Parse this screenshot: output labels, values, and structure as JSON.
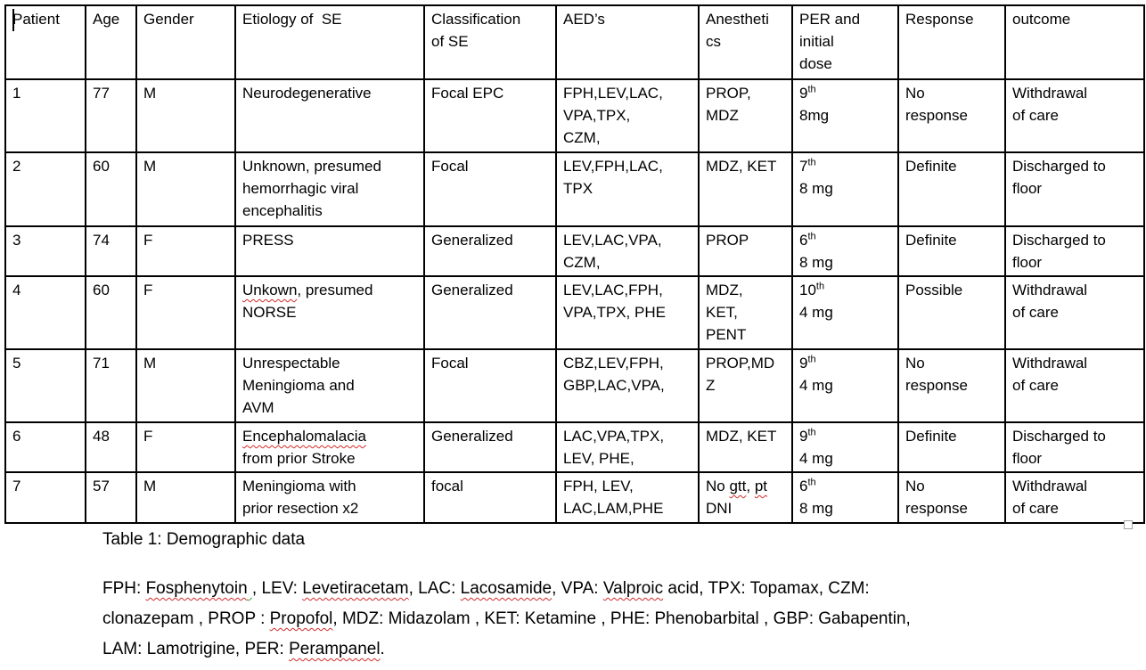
{
  "caption": "Table 1: Demographic data",
  "colors": {
    "border": "#000000",
    "text": "#000000",
    "background": "#ffffff",
    "spellcheck_underline": "#d22a2a",
    "grammar_underline": "#3f9b3f"
  },
  "table": {
    "header_keys": [
      "patient",
      "age",
      "gender",
      "etiology",
      "classification",
      "aeds",
      "anesthetics",
      "per_dose",
      "response",
      "outcome"
    ],
    "headers": [
      [
        "Patient"
      ],
      [
        "Age"
      ],
      [
        "Gender"
      ],
      [
        "Etiology of  SE"
      ],
      [
        "Classification",
        "of SE"
      ],
      [
        "AED’s"
      ],
      [
        "Anestheti",
        "cs"
      ],
      [
        "PER and",
        "initial",
        "dose"
      ],
      [
        "Response"
      ],
      [
        "outcome"
      ]
    ],
    "rows": [
      {
        "patient": "1",
        "age": "77",
        "gender": "M",
        "etiology": [
          "Neurodegenerative"
        ],
        "classification": [
          "Focal EPC"
        ],
        "aeds": [
          "FPH,LEV,LAC,",
          "VPA,TPX,",
          "CZM,"
        ],
        "anesthetics": [
          "PROP,",
          "MDZ"
        ],
        "per_dose": [
          [
            {
              "t": "9"
            },
            {
              "t": "th",
              "sup": true
            }
          ],
          "8mg"
        ],
        "response": [
          "No",
          "response"
        ],
        "outcome": [
          "Withdrawal",
          "of care"
        ]
      },
      {
        "patient": "2",
        "age": "60",
        "gender": "M",
        "etiology": [
          "Unknown, presumed",
          "hemorrhagic viral",
          "encephalitis"
        ],
        "classification": [
          "Focal"
        ],
        "aeds": [
          "LEV,FPH,LAC,",
          "TPX"
        ],
        "anesthetics": [
          "MDZ, KET"
        ],
        "per_dose": [
          [
            {
              "t": "7"
            },
            {
              "t": "th",
              "sup": true
            }
          ],
          "8 mg"
        ],
        "response": [
          "Definite"
        ],
        "outcome": [
          "Discharged to",
          "floor"
        ]
      },
      {
        "patient": "3",
        "age": "74",
        "gender": "F",
        "etiology": [
          "PRESS"
        ],
        "classification": [
          "Generalized"
        ],
        "aeds": [
          "LEV,LAC,VPA,",
          "CZM,"
        ],
        "anesthetics": [
          "PROP"
        ],
        "per_dose": [
          [
            {
              "t": "6"
            },
            {
              "t": "th",
              "sup": true
            }
          ],
          "8 mg"
        ],
        "response": [
          "Definite"
        ],
        "outcome": [
          "Discharged to",
          "floor"
        ]
      },
      {
        "patient": "4",
        "age": "60",
        "gender": "F",
        "etiology": [
          [
            {
              "t": "Unkown",
              "sp": true
            },
            {
              "t": ", presumed"
            }
          ],
          "NORSE"
        ],
        "classification": [
          "Generalized"
        ],
        "aeds": [
          "LEV,LAC,FPH,",
          "VPA,TPX, PHE"
        ],
        "anesthetics": [
          "MDZ,",
          "KET,",
          "PENT"
        ],
        "per_dose": [
          [
            {
              "t": "10"
            },
            {
              "t": "th",
              "sup": true
            }
          ],
          "4 mg"
        ],
        "response": [
          "Possible"
        ],
        "outcome": [
          "Withdrawal",
          "of care"
        ]
      },
      {
        "patient": "5",
        "age": "71",
        "gender": "M",
        "etiology": [
          "Unrespectable",
          "Meningioma and",
          "AVM"
        ],
        "classification": [
          "Focal"
        ],
        "aeds": [
          "CBZ,LEV,FPH,",
          "GBP,LAC,VPA,"
        ],
        "anesthetics": [
          "PROP,MD",
          "Z"
        ],
        "per_dose": [
          [
            {
              "t": "9"
            },
            {
              "t": "th",
              "sup": true
            }
          ],
          "4 mg"
        ],
        "response": [
          "No",
          "response"
        ],
        "outcome": [
          "Withdrawal",
          "of care"
        ]
      },
      {
        "patient": "6",
        "age": "48",
        "gender": "F",
        "etiology": [
          [
            {
              "t": "Encephalomalacia",
              "sp": true
            }
          ],
          "from prior Stroke"
        ],
        "classification": [
          "Generalized"
        ],
        "aeds": [
          "LAC,VPA,TPX,",
          "LEV, PHE,"
        ],
        "anesthetics": [
          "MDZ, KET"
        ],
        "per_dose": [
          [
            {
              "t": "9"
            },
            {
              "t": "th",
              "sup": true
            }
          ],
          "4 mg"
        ],
        "response": [
          "Definite"
        ],
        "outcome": [
          "Discharged to",
          "floor"
        ]
      },
      {
        "patient": "7",
        "age": "57",
        "gender": "M",
        "etiology": [
          "Meningioma with",
          "prior resection x2"
        ],
        "classification": [
          "focal"
        ],
        "aeds": [
          "FPH, LEV,",
          "LAC,LAM,PHE"
        ],
        "anesthetics": [
          [
            {
              "t": "No "
            },
            {
              "t": "gtt",
              "sp": true
            },
            {
              "t": ", "
            },
            {
              "t": "pt",
              "sp": true
            }
          ],
          "DNI"
        ],
        "per_dose": [
          [
            {
              "t": "6"
            },
            {
              "t": "th",
              "sup": true
            }
          ],
          "8 mg"
        ],
        "response": [
          "No",
          "response"
        ],
        "outcome": [
          "Withdrawal",
          "of care"
        ]
      }
    ]
  },
  "legend_lines": [
    [
      {
        "t": "FPH: "
      },
      {
        "t": "Fosphenytoin",
        "sp": true
      },
      {
        "t": " ",
        "gr": true
      },
      {
        "t": ", LEV: "
      },
      {
        "t": "Levetiracetam",
        "sp": true
      },
      {
        "t": ", LAC: "
      },
      {
        "t": "Lacosamide",
        "sp": true
      },
      {
        "t": ", VPA: "
      },
      {
        "t": "Valproic",
        "sp": true
      },
      {
        "t": " acid, TPX: Topamax, CZM:"
      }
    ],
    [
      {
        "t": "clonazepam , PROP : "
      },
      {
        "t": "Propofol",
        "sp": true
      },
      {
        "t": ", MDZ: Midazolam , KET: Ketamine , PHE: Phenobarbital , GBP: Gabapentin,"
      }
    ],
    [
      {
        "t": "LAM: Lamotrigine, PER: "
      },
      {
        "t": "Perampanel",
        "sp": true
      },
      {
        "t": "."
      }
    ]
  ]
}
